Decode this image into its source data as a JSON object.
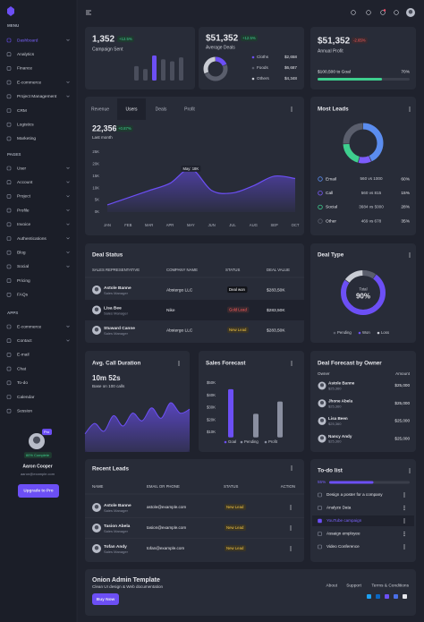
{
  "sidebar": {
    "sections": [
      {
        "title": "MENU",
        "items": [
          "Dashboard",
          "Analytics",
          "Finance",
          "E-commerce",
          "Project Management",
          "CRM",
          "Logistics",
          "Marketing"
        ]
      },
      {
        "title": "PAGES",
        "items": [
          "User",
          "Account",
          "Project",
          "Profile",
          "Invoice",
          "Authentications",
          "Blog",
          "Social",
          "Pricing",
          "FAQs"
        ]
      },
      {
        "title": "APPS",
        "items": [
          "E-commerce",
          "Contact",
          "E-mail",
          "Chat",
          "To-do",
          "Calendar",
          "Session"
        ]
      }
    ],
    "profile": {
      "badge": "Pro",
      "completion": "80% Complete",
      "name": "Aaron Cooper",
      "email": "aaron@example.com",
      "button": "Upgrade to Pro"
    }
  },
  "stats": [
    {
      "value": "1,352",
      "change": "+12.5%",
      "label": "Campaign Sent"
    },
    {
      "value": "$51,352",
      "change": "+12.5%",
      "label": "Average Deals"
    },
    {
      "value": "$51,352",
      "change": "-2.65%",
      "label": "Annual Profit",
      "goal": "$100,500 to Goal",
      "progress": 70,
      "progress_label": "70%"
    }
  ],
  "users_card": {
    "tabs": [
      "Revenue",
      "Users",
      "Deals",
      "Profit"
    ],
    "value": "22,356",
    "change": "+0.87%",
    "period": "Last month"
  },
  "deal_status": {
    "title": "Deal Status",
    "headers": [
      "SALES REPRESENTATIVE",
      "COMPANY NAME",
      "STATUS",
      "DEAL VALUE"
    ],
    "rows": [
      {
        "name": "Astole Banne",
        "role": "Sales Manager",
        "company": "Abstergo LLC",
        "status": "Deal won",
        "value": "$283,50K"
      },
      {
        "name": "Lisa Bee",
        "role": "Sales Manager",
        "company": "Nike",
        "status": "Gold Lead",
        "value": "$283,50K"
      },
      {
        "name": "Stuward Canne",
        "role": "Sales Manager",
        "company": "Abstergo LLC",
        "status": "New Lead",
        "value": "$283,50K"
      }
    ]
  },
  "deal_forecast": {
    "title": "Deal Forecast by Owner",
    "headers": [
      "Owner",
      "Amount"
    ],
    "rows": [
      {
        "name": "Astole Banne",
        "sub": "$25,360",
        "amount": "$25,000"
      },
      {
        "name": "Jhone Abela",
        "sub": "$25,360",
        "amount": "$25,000"
      },
      {
        "name": "Lisa Been",
        "sub": "$25,360",
        "amount": "$25,000"
      },
      {
        "name": "Nancy Andy",
        "sub": "$25,360",
        "amount": "$25,000"
      }
    ]
  },
  "recent_leads": {
    "title": "Recent Leads",
    "headers": [
      "NAME",
      "EMAIL OR PHONE",
      "STATUS",
      "ACTION"
    ],
    "rows": [
      {
        "name": "Astole Banne",
        "role": "Sales Manager",
        "email": "astole@example.com",
        "status": "New Lead"
      },
      {
        "name": "Tasion Abela",
        "role": "Sales Manager",
        "email": "tasion@example.com",
        "status": "New Lead"
      },
      {
        "name": "Tofan Andy",
        "role": "Sales Manager",
        "email": "tofan@example.com",
        "status": "New Lead"
      }
    ]
  },
  "todo": {
    "title": "To-do list",
    "progress": 55,
    "progress_label": "55%",
    "items": [
      {
        "text": "Design a poster for a company",
        "checked": false
      },
      {
        "text": "Analyze Data",
        "checked": false
      },
      {
        "text": "YouTube campaign",
        "checked": true
      },
      {
        "text": "Assaign employee",
        "checked": false
      },
      {
        "text": "Video Conference",
        "checked": false
      }
    ]
  },
  "footer": {
    "title": "Onion Admin Template",
    "subtitle": "Clean UI design & Web documentation",
    "button": "Buy Now",
    "links": [
      "About",
      "Support",
      "Terms & Conditions"
    ]
  },
  "chart_data": [
    {
      "type": "bar",
      "values": [
        15,
        12,
        26,
        22,
        20,
        24
      ],
      "colors": [
        "#4a4e5c",
        "#4a4e5c",
        "#6c4ff5",
        "#4a4e5c",
        "#4a4e5c",
        "#4a4e5c"
      ]
    },
    {
      "type": "donut",
      "categories": [
        "Cloths",
        "Foods",
        "Others"
      ],
      "values": [
        2658,
        6687,
        4348
      ],
      "value_labels": [
        "$2,658",
        "$6,687",
        "$4,348"
      ],
      "colors": [
        "#6c4ff5",
        "#5a5e6c",
        "#c9ccd4"
      ]
    },
    {
      "type": "area",
      "categories": [
        "JAN",
        "FEB",
        "MAR",
        "APR",
        "MAY",
        "JUN",
        "JUL",
        "AUG",
        "SEP",
        "OCT"
      ],
      "values": [
        3000,
        6000,
        9000,
        12000,
        18000,
        9000,
        8000,
        11000,
        15000,
        14000
      ],
      "ylim": [
        0,
        25000
      ],
      "yticks": [
        {
          "value": 0,
          "label": "0K"
        },
        {
          "value": 5000,
          "label": "5K"
        },
        {
          "value": 10000,
          "label": "10K"
        },
        {
          "value": 15000,
          "label": "15K"
        },
        {
          "value": 20000,
          "label": "20K"
        },
        {
          "value": 25000,
          "label": "25K"
        }
      ],
      "annotation": "May: 18K",
      "color": "#6c4ff5"
    },
    {
      "type": "donut",
      "title": "Most Leads",
      "categories": [
        "Email",
        "Call",
        "Social",
        "Other"
      ],
      "details": [
        "560 vs 1000",
        "560 vs 815",
        "3684 vs 5000",
        "469 vs 678"
      ],
      "values": [
        60,
        15,
        28,
        35
      ],
      "value_labels": [
        "60%",
        "15%",
        "28%",
        "35%"
      ],
      "colors": [
        "#5b8def",
        "#7c5cfc",
        "#3ecf8e",
        "#5a5e6c"
      ]
    },
    {
      "type": "donut",
      "title": "Deal Type",
      "categories": [
        "Pending",
        "Won",
        "Loss"
      ],
      "values": [
        10,
        75,
        15
      ],
      "colors": [
        "#5a5e6c",
        "#6c4ff5",
        "#c9ccd4"
      ],
      "center_label": "Total",
      "center_value": "90%"
    },
    {
      "type": "area",
      "title": "Avg. Call Duration",
      "subtitle": "10m 52s",
      "note": "Base on 100 calls",
      "values": [
        14,
        22,
        16,
        28,
        20,
        30,
        24,
        34,
        26,
        38,
        30,
        33
      ],
      "color": "#6c4ff5"
    },
    {
      "type": "bar",
      "title": "Sales Forecast",
      "categories": [
        "Goal",
        "Pending",
        "Profit"
      ],
      "values": [
        45000,
        25000,
        35000
      ],
      "colors": [
        "#6c4ff5",
        "#8a8fa0",
        "#8a8fa0"
      ],
      "ylim": [
        0,
        50000
      ],
      "yticks": [
        {
          "value": 10000,
          "label": "$10K"
        },
        {
          "value": 20000,
          "label": "$20K"
        },
        {
          "value": 30000,
          "label": "$30K"
        },
        {
          "value": 40000,
          "label": "$40K"
        },
        {
          "value": 50000,
          "label": "$50K"
        }
      ]
    }
  ]
}
